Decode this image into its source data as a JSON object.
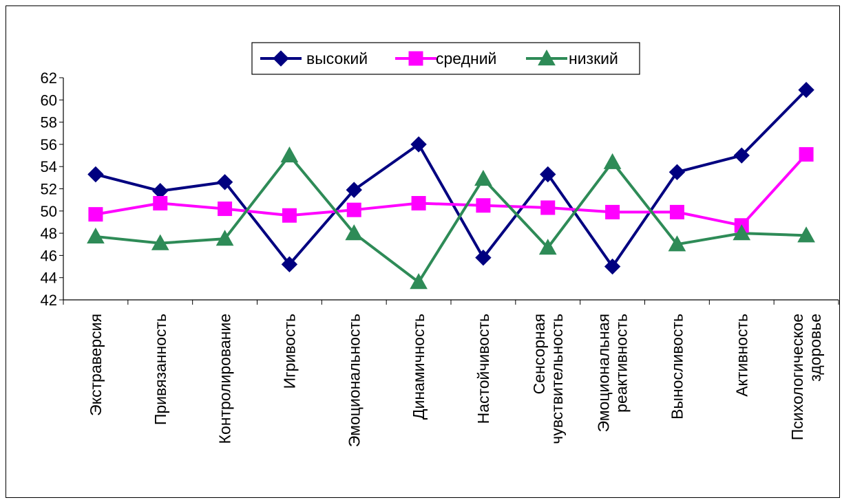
{
  "chart_data": {
    "type": "line",
    "categories": [
      [
        "Экстраверсия"
      ],
      [
        "Привязанность"
      ],
      [
        "Контролирование"
      ],
      [
        "Игривость"
      ],
      [
        "Эмоциональность"
      ],
      [
        "Динамичность"
      ],
      [
        "Настойчивость"
      ],
      [
        "Сенсорная",
        "чувствительность"
      ],
      [
        "Эмоциональная",
        "реактивность"
      ],
      [
        "Выносливость"
      ],
      [
        "Активность"
      ],
      [
        "Психологическое",
        "здоровье"
      ]
    ],
    "ylim": [
      42,
      62
    ],
    "yticks": [
      42,
      44,
      46,
      48,
      50,
      52,
      54,
      56,
      58,
      60,
      62
    ],
    "grid": false,
    "legend_position": "top",
    "series": [
      {
        "name": "высокий",
        "color": "#000080",
        "marker": "diamond",
        "values": [
          53.3,
          51.8,
          52.6,
          45.2,
          51.9,
          56.0,
          45.8,
          53.3,
          45.0,
          53.5,
          55.0,
          60.9
        ]
      },
      {
        "name": "средний",
        "color": "#ff00ff",
        "marker": "square",
        "values": [
          49.7,
          50.7,
          50.2,
          49.6,
          50.1,
          50.7,
          50.5,
          50.3,
          49.9,
          49.9,
          48.7,
          55.1
        ]
      },
      {
        "name": "низкий",
        "color": "#2e8b57",
        "marker": "triangle",
        "values": [
          47.7,
          47.1,
          47.5,
          55.0,
          48.0,
          43.6,
          52.9,
          46.7,
          54.4,
          47.0,
          48.0,
          47.8
        ]
      }
    ]
  }
}
